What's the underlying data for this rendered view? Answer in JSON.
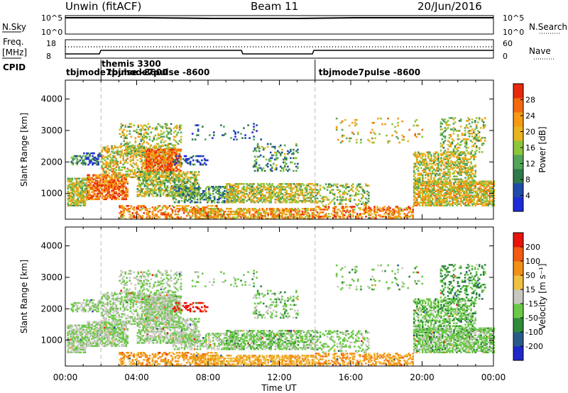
{
  "header": {
    "station": "Unwin",
    "mode": "(fitACF)",
    "beam": "Beam 11",
    "date": "20/Jun/2016"
  },
  "top_panels": {
    "nsky_label": "N.Sky",
    "nsky_ticks": [
      "10^5",
      "10^0"
    ],
    "nsearch_label": "N.Search",
    "nsearch_ticks": [
      "10^5",
      "10^0"
    ],
    "freq_label_1": "Freq.",
    "freq_label_2": "[MHz]",
    "freq_ticks": [
      "18",
      "8"
    ],
    "nave_label": "Nave",
    "nave_ticks": [
      "60",
      "0"
    ],
    "cpid_label": "CPID"
  },
  "cpid_labels": [
    {
      "text": "tbjmode7pulse -8600",
      "hour": 0.3
    },
    {
      "text": "themis 3300",
      "hour": 2.3
    },
    {
      "text": "tbjmode7pulse -8600",
      "hour": 2.3
    },
    {
      "text": "tbjmode7pulse -8600",
      "hour": 14.2
    }
  ],
  "cpid_boundaries_hours": [
    2.0,
    14.0
  ],
  "chart_data": [
    {
      "type": "heatmap",
      "name": "power",
      "ylabel": "Slant Range [km]",
      "ylim": [
        180,
        4600
      ],
      "xlim": [
        0,
        24
      ],
      "yticks": [
        "1000",
        "2000",
        "3000",
        "4000"
      ],
      "colorbar_label": "Power [dB]",
      "colorbar_ticks": [
        "28",
        "24",
        "20",
        "16",
        "12",
        "8",
        "4"
      ],
      "colorbar_colors": [
        "#1e2ad8",
        "#1f4aa8",
        "#2f7a4a",
        "#54a45a",
        "#8cc63c",
        "#e8b420",
        "#f59a14",
        "#f46a10",
        "#e82a0c"
      ]
    },
    {
      "type": "heatmap",
      "name": "velocity",
      "ylabel": "Slant Range [km]",
      "ylim": [
        180,
        4600
      ],
      "xlim": [
        0,
        24
      ],
      "yticks": [
        "1000",
        "2000",
        "3000",
        "4000"
      ],
      "xticks": [
        "00:00",
        "04:00",
        "08:00",
        "12:00",
        "16:00",
        "20:00",
        "00:00"
      ],
      "xlabel": "Time UT",
      "colorbar_label": "Velocity [m s⁻¹]",
      "colorbar_ticks": [
        "200",
        "100",
        "50",
        "15",
        "-15",
        "-50",
        "-100",
        "-200"
      ],
      "colorbar_colors": [
        "#1e28c8",
        "#2a5a88",
        "#2f8a3a",
        "#6cc848",
        "#c8c8c0",
        "#f0c040",
        "#f29018",
        "#f25a12",
        "#e8140c"
      ]
    }
  ]
}
